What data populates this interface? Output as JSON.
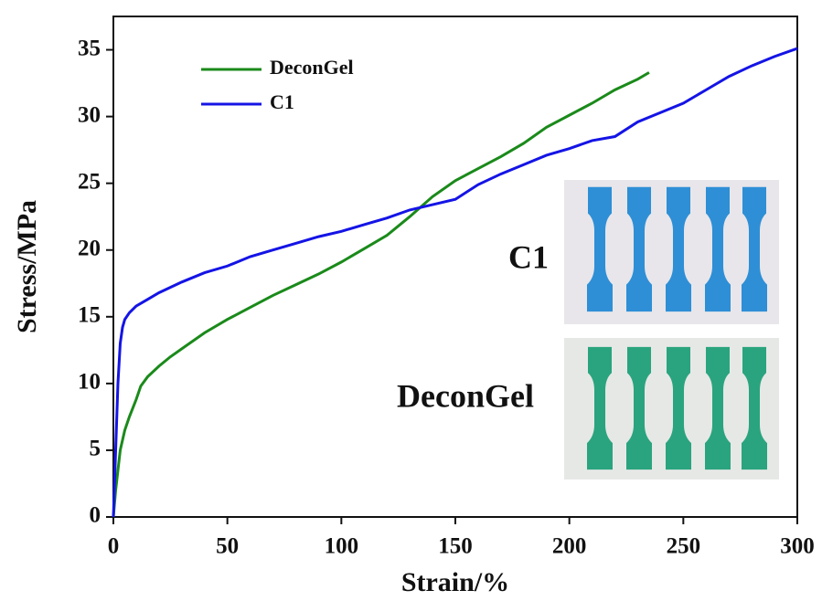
{
  "chart_data": {
    "type": "line",
    "x_label": "Strain/%",
    "y_label": "Stress/MPa",
    "xlim": [
      0,
      300
    ],
    "xticks": [
      0,
      50,
      100,
      150,
      200,
      250,
      300
    ],
    "ylim": [
      0,
      37.5
    ],
    "yticks": [
      0,
      5,
      10,
      15,
      20,
      25,
      30,
      35
    ],
    "legend": "top-left",
    "annotations": [
      "C1",
      "DeconGel"
    ],
    "series": [
      {
        "name": "DeconGel",
        "color": "#1a8a1a",
        "x": [
          0,
          1,
          2,
          3,
          5,
          7,
          10,
          12,
          15,
          20,
          25,
          30,
          40,
          50,
          60,
          70,
          80,
          90,
          100,
          110,
          120,
          130,
          140,
          150,
          160,
          170,
          180,
          190,
          200,
          210,
          220,
          230,
          235
        ],
        "values": [
          0,
          2,
          3.5,
          5,
          6.5,
          7.5,
          8.8,
          9.8,
          10.5,
          11.3,
          12,
          12.6,
          13.8,
          14.8,
          15.7,
          16.6,
          17.4,
          18.2,
          19.1,
          20.1,
          21.1,
          22.5,
          24.0,
          25.2,
          26.1,
          27.0,
          28.0,
          29.2,
          30.1,
          31.0,
          32.0,
          32.8,
          33.3
        ]
      },
      {
        "name": "C1",
        "color": "#1414e6",
        "x": [
          0,
          1,
          2,
          3,
          4,
          5,
          7,
          10,
          15,
          20,
          30,
          40,
          50,
          60,
          70,
          80,
          90,
          100,
          110,
          120,
          130,
          140,
          150,
          160,
          170,
          180,
          190,
          200,
          210,
          220,
          230,
          240,
          250,
          260,
          270,
          280,
          290,
          300
        ],
        "values": [
          0,
          5,
          10,
          13,
          14.2,
          14.8,
          15.3,
          15.8,
          16.3,
          16.8,
          17.6,
          18.3,
          18.8,
          19.5,
          20.0,
          20.5,
          21.0,
          21.4,
          21.9,
          22.4,
          23.0,
          23.4,
          23.8,
          24.9,
          25.7,
          26.4,
          27.1,
          27.6,
          28.2,
          28.5,
          29.6,
          30.3,
          31.0,
          32.0,
          33.0,
          33.8,
          34.5,
          35.1
        ]
      }
    ]
  }
}
